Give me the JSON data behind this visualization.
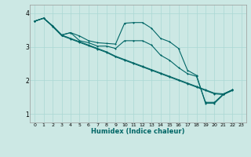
{
  "xlabel": "Humidex (Indice chaleur)",
  "background_color": "#cce8e4",
  "line_color": "#006666",
  "grid_color": "#aad8d4",
  "xlim": [
    -0.5,
    23.5
  ],
  "ylim": [
    0.75,
    4.25
  ],
  "yticks": [
    1,
    2,
    3,
    4
  ],
  "xticks": [
    0,
    1,
    2,
    3,
    4,
    5,
    6,
    7,
    8,
    9,
    10,
    11,
    12,
    13,
    14,
    15,
    16,
    17,
    18,
    19,
    20,
    21,
    22,
    23
  ],
  "line1_x": [
    0,
    1,
    2,
    3,
    4,
    5,
    6,
    7,
    8,
    9,
    10,
    11,
    12,
    13,
    14,
    15,
    16,
    17,
    18,
    19,
    20,
    21,
    22
  ],
  "line1_y": [
    3.76,
    3.85,
    3.62,
    3.35,
    3.42,
    3.32,
    3.18,
    3.12,
    3.1,
    3.08,
    3.7,
    3.72,
    3.72,
    3.55,
    3.25,
    3.15,
    2.95,
    2.3,
    2.15,
    1.32,
    1.32,
    1.58,
    1.72
  ],
  "line2_x": [
    0,
    1,
    2,
    3,
    4,
    5,
    6,
    7,
    8,
    9,
    10,
    11,
    12,
    13,
    14,
    15,
    16,
    17,
    18,
    19,
    20,
    21,
    22
  ],
  "line2_y": [
    3.76,
    3.85,
    3.62,
    3.35,
    3.42,
    3.18,
    3.12,
    3.02,
    3.02,
    2.95,
    3.18,
    3.18,
    3.18,
    3.05,
    2.75,
    2.6,
    2.38,
    2.2,
    2.12,
    1.35,
    1.35,
    1.6,
    1.72
  ],
  "line3_x": [
    0,
    1,
    2,
    3,
    4,
    5,
    6,
    7,
    8,
    9,
    10,
    11,
    12,
    13,
    14,
    15,
    16,
    17,
    18,
    19,
    20,
    21,
    22
  ],
  "line3_y": [
    3.76,
    3.85,
    3.62,
    3.35,
    3.25,
    3.15,
    3.05,
    2.95,
    2.85,
    2.72,
    2.62,
    2.52,
    2.42,
    2.32,
    2.22,
    2.12,
    2.02,
    1.92,
    1.82,
    1.72,
    1.62,
    1.6,
    1.72
  ],
  "line4_x": [
    0,
    1,
    2,
    3,
    4,
    5,
    6,
    7,
    8,
    9,
    10,
    11,
    12,
    13,
    14,
    15,
    16,
    17,
    18,
    19,
    20,
    21,
    22
  ],
  "line4_y": [
    3.76,
    3.85,
    3.6,
    3.33,
    3.23,
    3.13,
    3.03,
    2.93,
    2.83,
    2.7,
    2.6,
    2.5,
    2.4,
    2.3,
    2.2,
    2.1,
    2.0,
    1.9,
    1.8,
    1.7,
    1.6,
    1.58,
    1.7
  ]
}
